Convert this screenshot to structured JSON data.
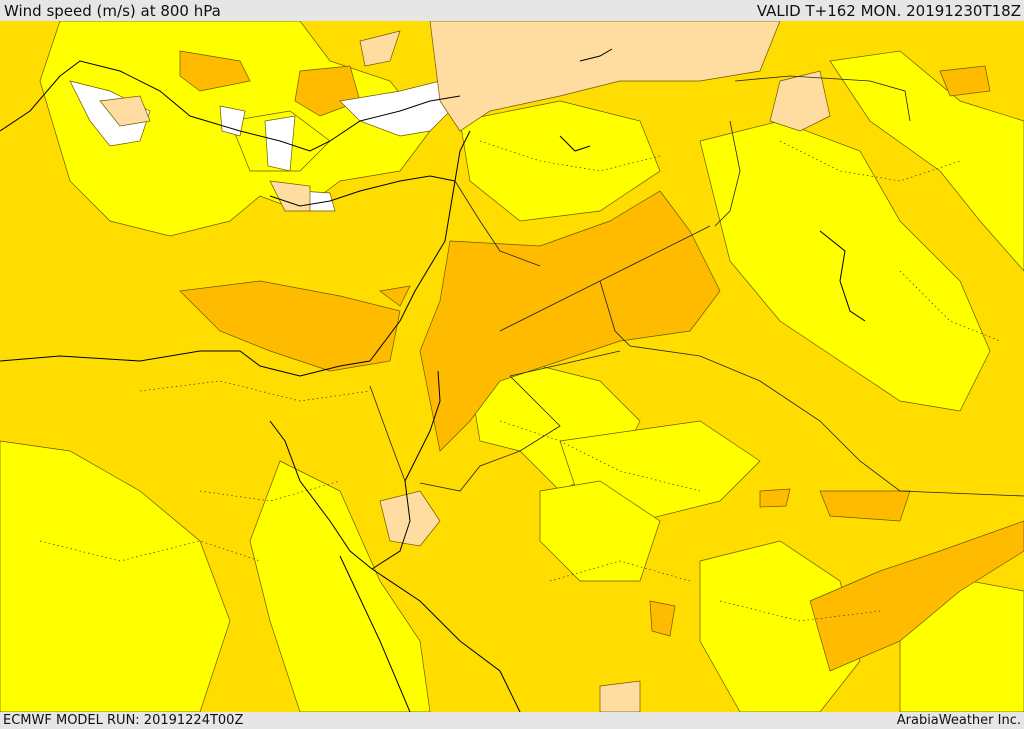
{
  "header": {
    "title": "Wind speed (m/s) at 800 hPa",
    "valid_time": "VALID T+162 MON. 20191230T18Z"
  },
  "footer": {
    "model_run": "ECMWF MODEL RUN: 20191224T00Z",
    "credit": "ArabiaWeather Inc."
  },
  "colors": {
    "band_0_5": "#ffffff",
    "band_5_10": "#ffff00",
    "band_10_15": "#ffdd00",
    "band_15_20": "#ffbb00",
    "band_20_25": "#ffa31a",
    "band_high": "#ffdca0",
    "contour": "#5a4a00",
    "coastline": "#000000",
    "borders": "#222222"
  }
}
